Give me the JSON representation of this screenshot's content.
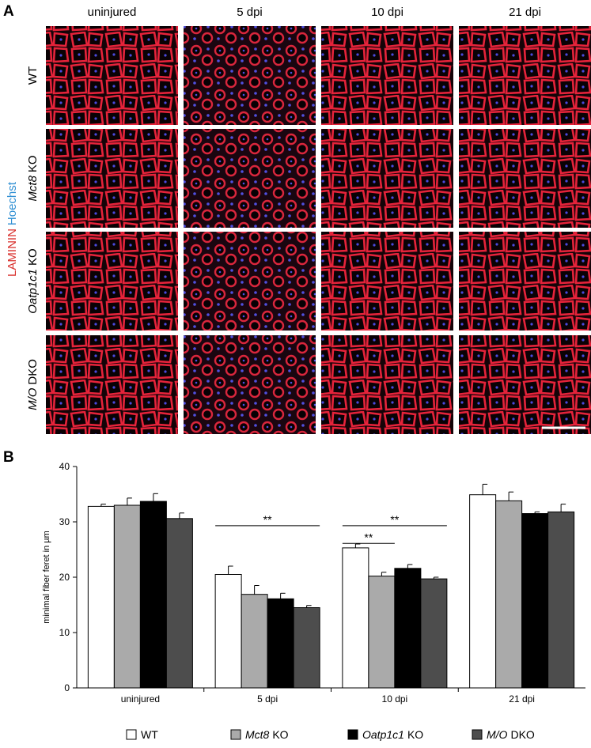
{
  "panel_a": {
    "label": "A",
    "columns": [
      "uninjured",
      "5 dpi",
      "10 dpi",
      "21 dpi"
    ],
    "rows": [
      {
        "text": "WT"
      },
      {
        "italic": "Mct8",
        "text": "KO"
      },
      {
        "italic": "Oatp1c1",
        "text": "KO"
      },
      {
        "italic": "M/O",
        "text": "DKO"
      }
    ],
    "stains": [
      {
        "text": "LAMININ",
        "color": "#d9302c"
      },
      {
        "text": "Hoechst",
        "color": "#2f8fd3"
      }
    ]
  },
  "panel_b": {
    "label": "B"
  },
  "chart_data": {
    "type": "bar",
    "y_label": "minimal fiber feret in µm",
    "categories": [
      "uninjured",
      "5 dpi",
      "10 dpi",
      "21 dpi"
    ],
    "ylim": [
      0,
      40
    ],
    "yticks": [
      0,
      10,
      20,
      30,
      40
    ],
    "series": [
      {
        "name": "WT",
        "color": "#ffffff",
        "values": [
          32.8,
          20.5,
          25.3,
          34.9
        ],
        "errors": [
          0.4,
          1.5,
          0.7,
          1.9
        ]
      },
      {
        "name_italic": "Mct8",
        "name": "KO",
        "color": "#aaaaaa",
        "values": [
          33.0,
          16.9,
          20.2,
          33.8
        ],
        "errors": [
          1.3,
          1.6,
          0.7,
          1.6
        ]
      },
      {
        "name_italic": "Oatp1c1",
        "name": "KO",
        "color": "#000000",
        "values": [
          33.7,
          16.1,
          21.6,
          31.5
        ],
        "errors": [
          1.4,
          1.0,
          0.7,
          0.3
        ]
      },
      {
        "name_italic": "M/O",
        "name": "DKO",
        "color": "#4d4d4d",
        "values": [
          30.6,
          14.5,
          19.7,
          31.8
        ],
        "errors": [
          1.0,
          0.4,
          0.3,
          1.4
        ]
      }
    ],
    "edgecolor": "#000000",
    "significance": [
      {
        "label": "**",
        "category": 1,
        "series_from": 0,
        "series_to": 3,
        "y": 29.3
      },
      {
        "label": "**",
        "category": 2,
        "series_from": 0,
        "series_to": 3,
        "y": 29.3
      },
      {
        "label": "**",
        "category": 2,
        "series_from": 0,
        "series_to": 1,
        "y": 26.1
      }
    ]
  }
}
